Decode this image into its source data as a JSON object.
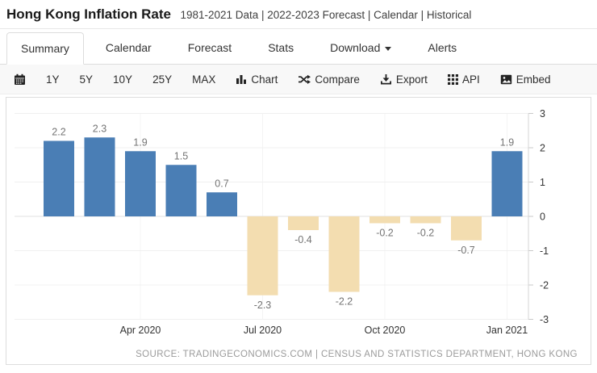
{
  "header": {
    "title": "Hong Kong Inflation Rate",
    "subtitle": "1981-2021 Data | 2022-2023 Forecast | Calendar | Historical"
  },
  "tabs": {
    "items": [
      {
        "label": "Summary",
        "active": true
      },
      {
        "label": "Calendar",
        "active": false
      },
      {
        "label": "Forecast",
        "active": false
      },
      {
        "label": "Stats",
        "active": false
      },
      {
        "label": "Download",
        "active": false,
        "has_caret": true
      },
      {
        "label": "Alerts",
        "active": false
      }
    ]
  },
  "toolbar": {
    "ranges": [
      "1Y",
      "5Y",
      "10Y",
      "25Y",
      "MAX"
    ],
    "actions": [
      {
        "label": "Chart",
        "icon": "bar-chart-icon"
      },
      {
        "label": "Compare",
        "icon": "shuffle-icon"
      },
      {
        "label": "Export",
        "icon": "download-icon"
      },
      {
        "label": "API",
        "icon": "grid-icon"
      },
      {
        "label": "Embed",
        "icon": "image-icon"
      }
    ]
  },
  "chart_data": {
    "type": "bar",
    "title": "Hong Kong Inflation Rate",
    "values": [
      2.2,
      2.3,
      1.9,
      1.5,
      0.7,
      -2.3,
      -0.4,
      -2.2,
      -0.2,
      -0.2,
      -0.7,
      1.9
    ],
    "bar_labels": [
      "2.2",
      "2.3",
      "1.9",
      "1.5",
      "0.7",
      "-2.3",
      "-0.4",
      "-2.2",
      "-0.2",
      "-0.2",
      "-0.7",
      "1.9"
    ],
    "x_tick_labels": [
      "Apr 2020",
      "Jul 2020",
      "Oct 2020",
      "Jan 2021"
    ],
    "x_tick_bar_indexes": [
      2,
      5,
      8,
      11
    ],
    "y_ticks": [
      3,
      2,
      1,
      0,
      -1,
      -2,
      -3
    ],
    "ylim": [
      -3.2,
      3.2
    ],
    "grid": true,
    "legend": "none",
    "y_axis_side": "right",
    "colors": {
      "positive": "#4a7eb5",
      "negative": "#f3ddb0"
    },
    "source": "SOURCE: TRADINGECONOMICS.COM | CENSUS AND STATISTICS DEPARTMENT, HONG KONG"
  }
}
